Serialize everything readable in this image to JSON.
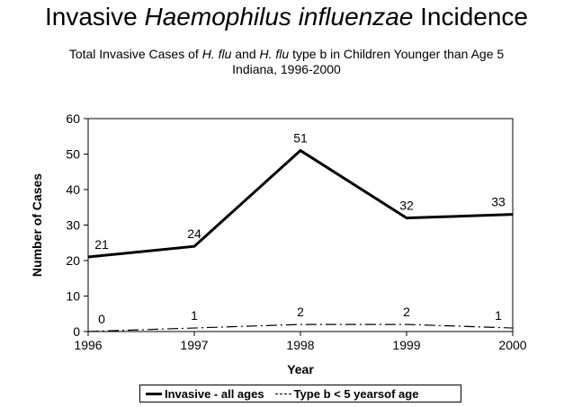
{
  "header": {
    "title_pre": "Invasive ",
    "title_italic": "Haemophilus influenzae",
    "title_post": " Incidence",
    "subtitle_a": "Total Invasive Cases of ",
    "subtitle_b": "H. flu",
    "subtitle_c": " and ",
    "subtitle_d": "H. flu",
    "subtitle_e": " type b in Children Younger than Age 5",
    "subtitle_line2": "Indiana, 1996-2000"
  },
  "chart_data": {
    "type": "line",
    "x": [
      "1996",
      "1997",
      "1998",
      "1999",
      "2000"
    ],
    "xlabel": "Year",
    "ylabel": "Number of Cases",
    "ylim": [
      0,
      60
    ],
    "yticks": [
      "0",
      "10",
      "20",
      "30",
      "40",
      "50",
      "60"
    ],
    "grid": false,
    "legend_position": "bottom",
    "series": [
      {
        "name": "Invasive - all ages",
        "values": [
          21,
          24,
          51,
          32,
          33
        ],
        "labels": [
          "21",
          "24",
          "51",
          "32",
          "33"
        ],
        "style": "solid",
        "color": "#000000"
      },
      {
        "name": "Type b < 5 yearsof age",
        "values": [
          0,
          1,
          2,
          2,
          1
        ],
        "labels": [
          "0",
          "1",
          "2",
          "2",
          "1"
        ],
        "style": "dashdot",
        "color": "#000000"
      }
    ]
  }
}
